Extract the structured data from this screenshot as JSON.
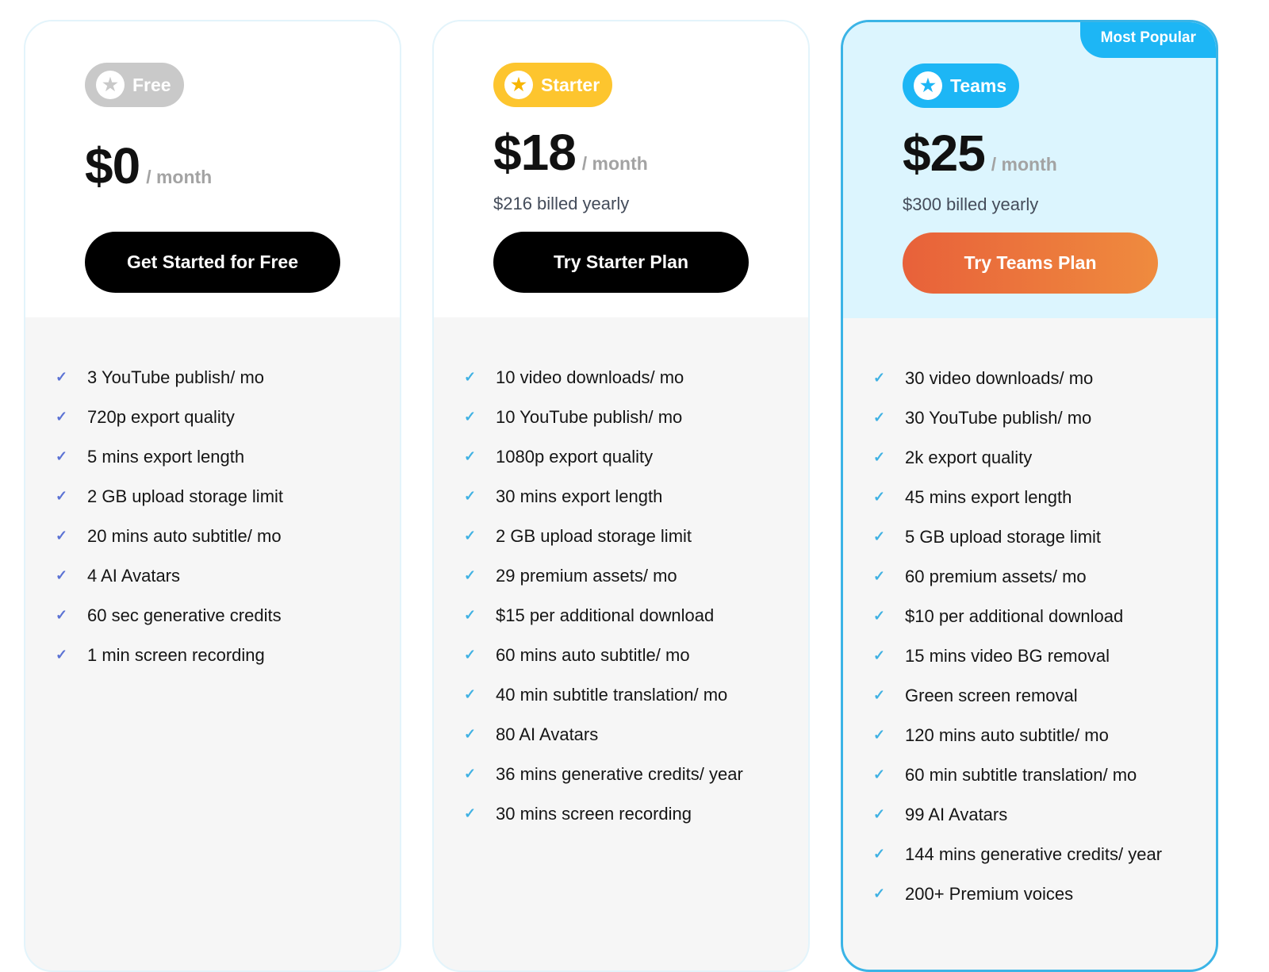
{
  "plans": [
    {
      "name": "Free",
      "badge_color": "#c9c9c9",
      "star_color": "#c9c9c9",
      "price": "$0",
      "per": "/ month",
      "billed": "",
      "cta": "Get Started for Free",
      "cta_style": "black",
      "check_color": "#5b72d4",
      "highlight": false,
      "features": [
        "3 YouTube publish/ mo",
        "720p export quality",
        "5 mins export length",
        "2 GB upload storage limit",
        "20 mins auto subtitle/ mo",
        "4 AI Avatars",
        "60 sec generative credits",
        "1 min screen recording"
      ]
    },
    {
      "name": "Starter",
      "badge_color": "#fdc52e",
      "star_color": "#f7b500",
      "price": "$18",
      "per": "/ month",
      "billed": "$216 billed yearly",
      "cta": "Try Starter Plan",
      "cta_style": "black",
      "check_color": "#3fb1e3",
      "highlight": false,
      "features": [
        "10 video downloads/ mo",
        "10 YouTube publish/ mo",
        "1080p export quality",
        "30 mins export length",
        "2 GB upload storage limit",
        "29 premium assets/ mo",
        "$15 per additional download",
        "60 mins auto subtitle/ mo",
        "40 min subtitle translation/ mo",
        "80 AI Avatars",
        "36 mins generative credits/ year",
        "30 mins screen recording"
      ]
    },
    {
      "name": "Teams",
      "badge_color": "#1db6f5",
      "star_color": "#1db6f5",
      "price": "$25",
      "per": "/ month",
      "billed": "$300 billed yearly",
      "cta": "Try Teams Plan",
      "cta_style": "orange",
      "check_color": "#3fb1e3",
      "highlight": true,
      "tag": "Most Popular",
      "features": [
        "30 video downloads/ mo",
        "30 YouTube publish/ mo",
        "2k export quality",
        "45 mins export length",
        "5 GB upload storage limit",
        "60 premium assets/ mo",
        "$10 per additional download",
        "15 mins video BG removal",
        "Green screen removal",
        "120 mins auto subtitle/ mo",
        "60 min subtitle translation/ mo",
        "99 AI Avatars",
        "144 mins generative credits/ year",
        "200+ Premium voices"
      ]
    }
  ]
}
